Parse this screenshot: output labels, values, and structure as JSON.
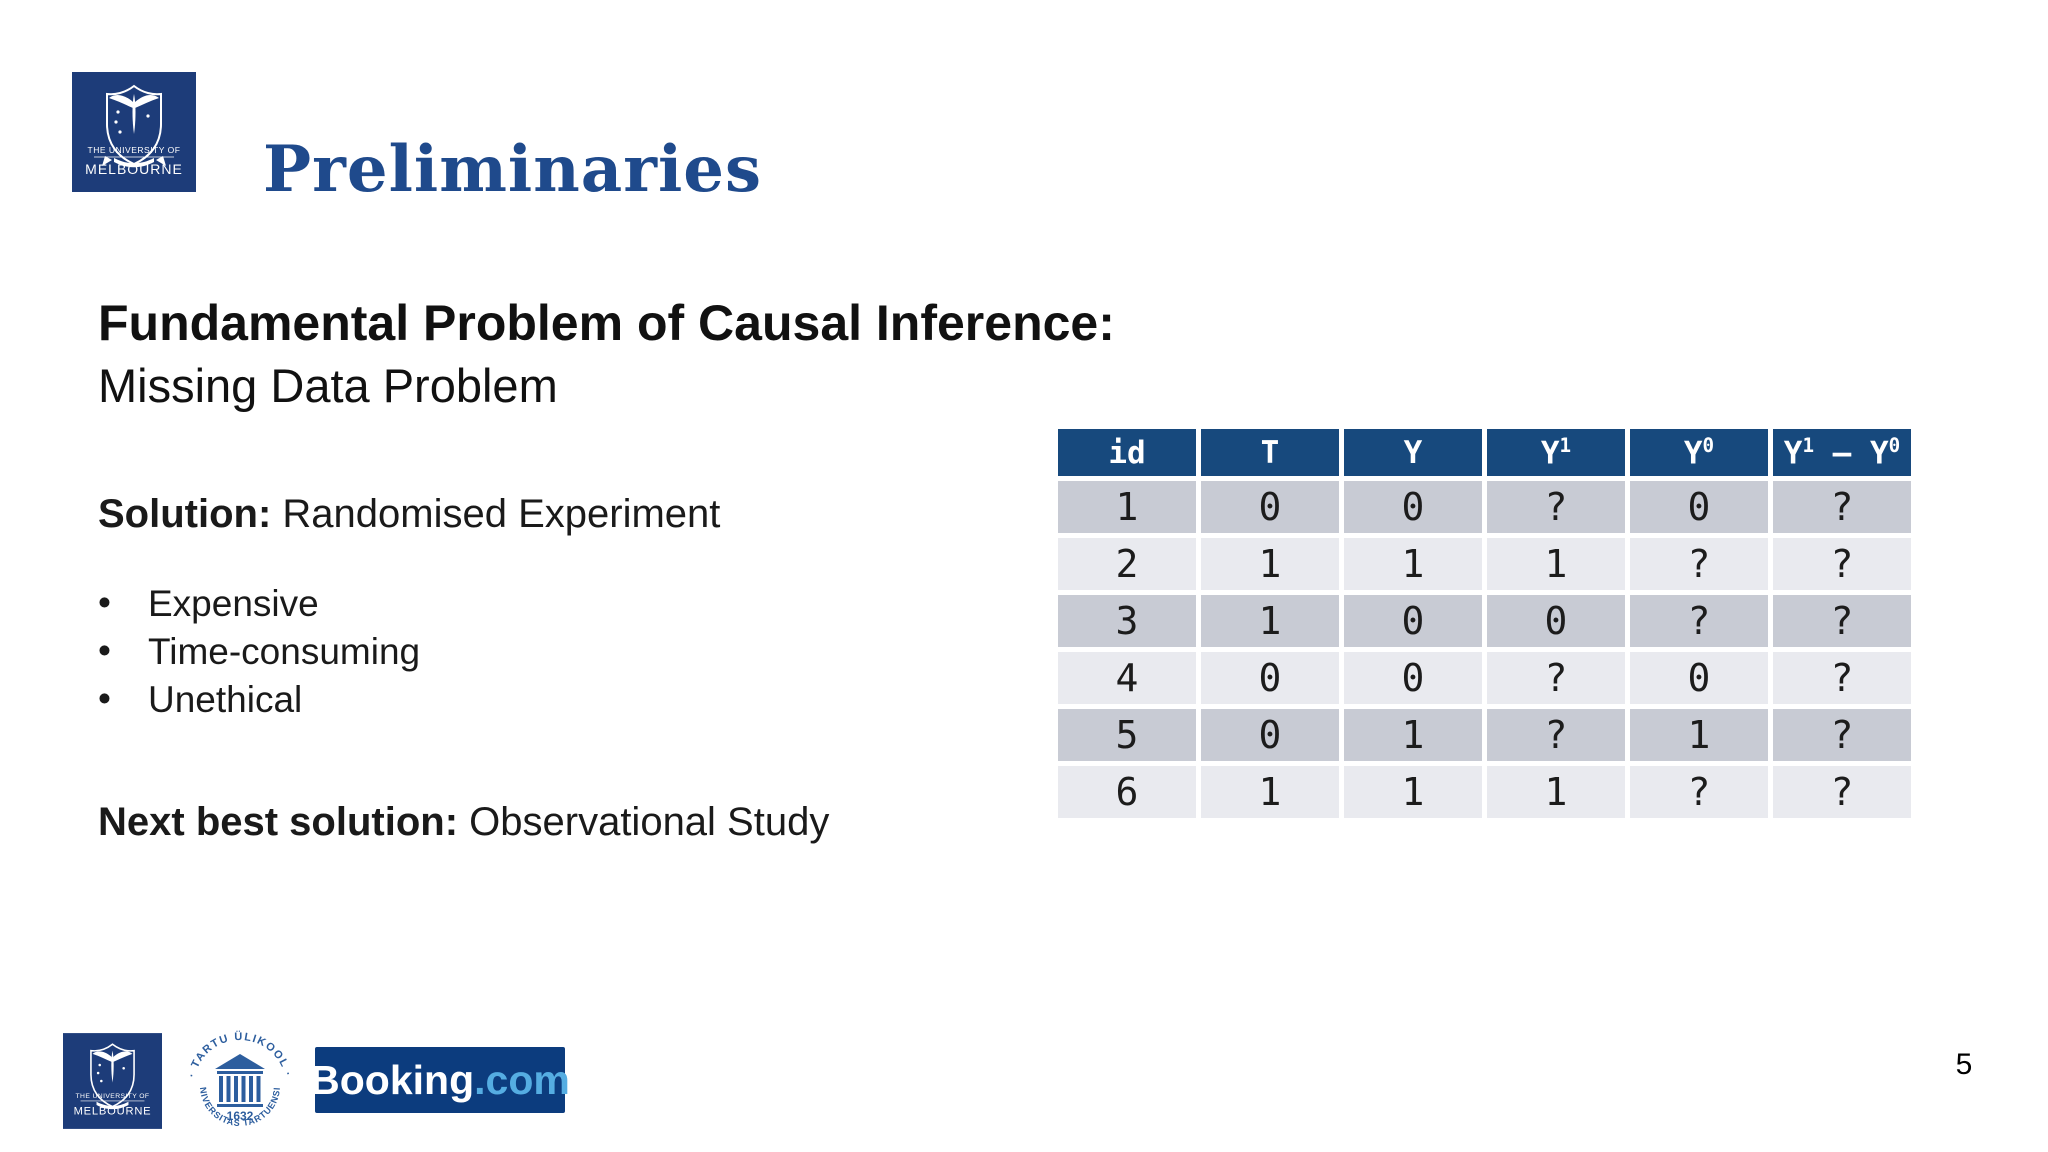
{
  "slide": {
    "title": "Preliminaries",
    "heading_bold": "Fundamental Problem of Causal Inference:",
    "heading_sub": "Missing Data Problem",
    "solution_label": "Solution:",
    "solution_text": " Randomised Experiment",
    "bullets": [
      "Expensive",
      "Time-consuming",
      "Unethical"
    ],
    "next_label": "Next best solution:",
    "next_text": " Observational Study",
    "page_number": "5"
  },
  "table": {
    "headers": [
      [
        {
          "t": "id"
        }
      ],
      [
        {
          "t": "T"
        }
      ],
      [
        {
          "t": "Y"
        }
      ],
      [
        {
          "t": "Y"
        },
        {
          "s": "1"
        }
      ],
      [
        {
          "t": "Y"
        },
        {
          "s": "0"
        }
      ],
      [
        {
          "t": "Y"
        },
        {
          "s": "1"
        },
        {
          "t": " – Y"
        },
        {
          "s": "0"
        }
      ]
    ],
    "rows": [
      [
        "1",
        "0",
        "0",
        "?",
        "0",
        "?"
      ],
      [
        "2",
        "1",
        "1",
        "1",
        "?",
        "?"
      ],
      [
        "3",
        "1",
        "0",
        "0",
        "?",
        "?"
      ],
      [
        "4",
        "0",
        "0",
        "?",
        "0",
        "?"
      ],
      [
        "5",
        "0",
        "1",
        "?",
        "1",
        "?"
      ],
      [
        "6",
        "1",
        "1",
        "1",
        "?",
        "?"
      ]
    ]
  },
  "logos": {
    "uom_line1": "THE UNIVERSITY OF",
    "uom_line2": "MELBOURNE",
    "tartu_top": "· TARTU ÜLIKOOL ·",
    "tartu_bottom": "UNIVERSITAS TARTUENSIS",
    "tartu_year": "1632",
    "booking_white": "Booking",
    "booking_accent": ".com"
  },
  "colors": {
    "title_blue": "#1F4A8C",
    "header_blue": "#17497D",
    "row_dark": "#C8CBD4",
    "row_light": "#E9EAEF",
    "uom_navy": "#1D3C79",
    "booking_navy": "#0C3C7E",
    "booking_accent": "#55ADE2",
    "tartu_blue": "#2D5E9E"
  }
}
